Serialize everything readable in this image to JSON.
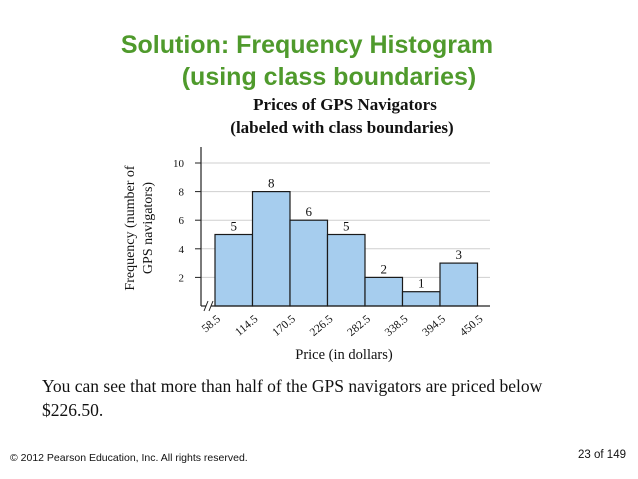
{
  "slide": {
    "title_line1": "Solution: Frequency Histogram",
    "title_line2": "(using class boundaries)",
    "caption": "You can see that more than half of the GPS navigators are priced below $226.50.",
    "copyright": "© 2012 Pearson Education, Inc. All rights reserved.",
    "page": "23 of 149"
  },
  "colors": {
    "title": "#4f9a2c",
    "bar_fill": "#a6cdee",
    "bar_stroke": "#1a1a1a"
  },
  "chart_data": {
    "type": "bar",
    "title": "Prices of GPS Navigators",
    "subtitle": "(labeled with class boundaries)",
    "xlabel": "Price (in dollars)",
    "ylabel_line1": "Frequency (number of",
    "ylabel_line2": "GPS navigators)",
    "boundaries": [
      "58.5",
      "114.5",
      "170.5",
      "226.5",
      "282.5",
      "338.5",
      "394.5",
      "450.5"
    ],
    "values": [
      5,
      8,
      6,
      5,
      2,
      1,
      3
    ],
    "yticks": [
      2,
      4,
      6,
      8,
      10
    ],
    "ylim": [
      0,
      11
    ],
    "grid": true,
    "axis_break": true
  }
}
